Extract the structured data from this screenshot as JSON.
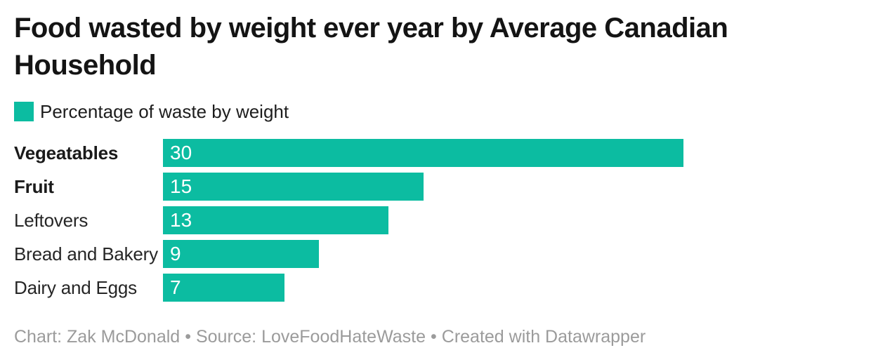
{
  "header": {
    "title": "Food wasted by weight ever year by Average Canadian Household",
    "title_lines": [
      "Food wasted by weight ever year by Average Canadian",
      "Household"
    ]
  },
  "chart_data": {
    "type": "bar",
    "orientation": "horizontal",
    "title": "Food wasted by weight ever year by Average Canadian Household",
    "series_name": "Percentage of waste by weight",
    "categories": [
      "Vegeatables",
      "Fruit",
      "Leftovers",
      "Bread and Bakery",
      "Dairy and Eggs"
    ],
    "values": [
      30,
      15,
      13,
      9,
      7
    ],
    "value_labels": "inside-start",
    "xlim": [
      0,
      40
    ],
    "grid": false,
    "axis_ticks_visible": false,
    "legend_position": "top-left",
    "bold_categories": [
      "Vegeatables",
      "Fruit"
    ]
  },
  "colors": {
    "bar": "#0cbca1",
    "title_text": "#141414",
    "label_text": "#262626",
    "value_text": "#ffffff",
    "footer_text": "#9b9b9b",
    "background": "#ffffff"
  },
  "footer": {
    "text": "Chart: Zak McDonald • Source: LoveFoodHateWaste • Created with Datawrapper",
    "chart_credit": "Chart: Zak McDonald",
    "source_credit": "Source: LoveFoodHateWaste",
    "tool_credit": "Created with Datawrapper",
    "separator": "•"
  }
}
